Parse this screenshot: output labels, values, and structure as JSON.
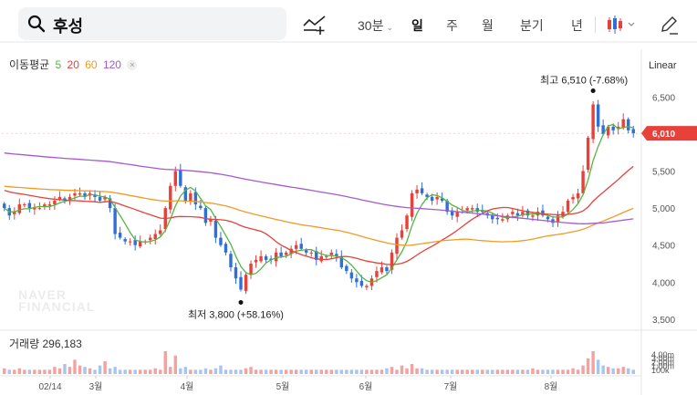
{
  "search": {
    "query": "후성"
  },
  "toolbar": {
    "periods": [
      "30분",
      "일",
      "주",
      "월",
      "분기",
      "년"
    ],
    "active_period": "일"
  },
  "ma_legend": {
    "title": "이동평균",
    "lines": [
      {
        "label": "5",
        "color": "#55b544"
      },
      {
        "label": "20",
        "color": "#e8413a"
      },
      {
        "label": "60",
        "color": "#f39a24"
      },
      {
        "label": "120",
        "color": "#a45ad0"
      }
    ]
  },
  "scale_label": "Linear",
  "watermark": [
    "NAVER",
    "FINANCIAL"
  ],
  "colors": {
    "up": "#e8413a",
    "down": "#2f6fd6",
    "price_tag": "#e8413a"
  },
  "chart_data": {
    "type": "candlestick",
    "ylim": [
      3400,
      6800
    ],
    "y_ticks": [
      3500,
      4000,
      4500,
      5000,
      5500,
      6000,
      6500
    ],
    "y_tick_labels": [
      "3,500",
      "4,000",
      "4,500",
      "5,000",
      "5,500",
      "6,000",
      "6,500"
    ],
    "x_labels": [
      "02/14",
      "3월",
      "4월",
      "5월",
      "6월",
      "7월",
      "8월"
    ],
    "current_price": 6010,
    "current_price_label": "6,010",
    "high_label": "최고 6,510 (-7.68%)",
    "low_label": "최저 3,800 (+58.16%)",
    "volume_title": "거래량",
    "volume_value": "296,183",
    "volume_ticks": [
      "4,00m",
      "3,00m",
      "2,00m",
      "1,00m",
      "100k"
    ],
    "close": [
      5000,
      4900,
      4950,
      5050,
      5050,
      5000,
      5000,
      5000,
      5050,
      5050,
      5100,
      5150,
      5100,
      5150,
      5200,
      5200,
      5150,
      5200,
      5150,
      5100,
      5150,
      5000,
      4650,
      4600,
      4550,
      4550,
      4500,
      4550,
      4550,
      4600,
      4650,
      4700,
      5000,
      5300,
      5500,
      5300,
      5100,
      5200,
      5050,
      5000,
      4800,
      4850,
      4600,
      4500,
      4400,
      4200,
      4050,
      3900,
      4100,
      4250,
      4300,
      4350,
      4300,
      4300,
      4400,
      4350,
      4400,
      4450,
      4500,
      4450,
      4400,
      4400,
      4300,
      4350,
      4350,
      4400,
      4350,
      4200,
      4150,
      4050,
      4000,
      3950,
      3950,
      4050,
      4150,
      4200,
      4150,
      4400,
      4600,
      4700,
      4900,
      5200,
      5250,
      5200,
      5150,
      5100,
      5150,
      5100,
      4950,
      4900,
      4950,
      4950,
      5000,
      5000,
      4950,
      4950,
      4900,
      4850,
      4850,
      4850,
      4900,
      4950,
      4900,
      4950,
      4900,
      4900,
      4950,
      4900,
      4850,
      4800,
      4900,
      4950,
      5100,
      5150,
      5200,
      5500,
      5950,
      6400,
      6100,
      6000,
      6100,
      6050,
      6100,
      6200,
      6050,
      6010
    ],
    "volume_rel": [
      0.4,
      0.3,
      0.3,
      0.4,
      0.3,
      0.3,
      0.3,
      0.3,
      0.3,
      0.3,
      0.5,
      0.4,
      0.7,
      0.5,
      1.0,
      0.6,
      0.5,
      0.4,
      0.3,
      0.6,
      0.9,
      0.4,
      0.5,
      0.3,
      0.3,
      0.3,
      0.3,
      0.3,
      0.3,
      0.3,
      0.4,
      0.3,
      1.6,
      0.5,
      1.3,
      0.4,
      0.5,
      0.3,
      0.3,
      0.3,
      0.4,
      0.3,
      0.4,
      0.6,
      0.3,
      0.3,
      0.3,
      0.3,
      0.4,
      0.5,
      0.3,
      0.3,
      0.3,
      0.3,
      0.3,
      0.3,
      0.3,
      0.3,
      0.3,
      0.3,
      0.3,
      0.3,
      0.3,
      0.3,
      0.3,
      0.3,
      0.3,
      0.3,
      0.3,
      0.3,
      0.3,
      0.3,
      0.3,
      0.3,
      0.3,
      0.3,
      0.4,
      0.5,
      0.3,
      0.6,
      0.4,
      0.7,
      0.4,
      0.4,
      0.3,
      0.3,
      0.3,
      0.3,
      0.3,
      0.3,
      0.3,
      0.3,
      0.3,
      0.3,
      0.3,
      0.3,
      0.3,
      0.3,
      0.3,
      0.3,
      0.3,
      0.3,
      0.3,
      0.3,
      0.3,
      0.4,
      0.3,
      0.3,
      0.3,
      0.3,
      0.3,
      0.3,
      0.3,
      0.4,
      0.3,
      0.6,
      1.1,
      1.6,
      1.0,
      0.6,
      0.5,
      0.4,
      0.4,
      0.5,
      0.4,
      0.3
    ]
  }
}
